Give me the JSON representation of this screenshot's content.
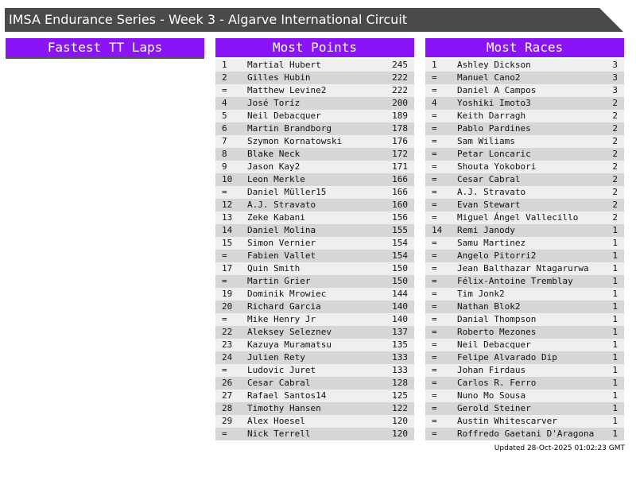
{
  "header": {
    "title": "IMSA Endurance Series - Week 3 - Algarve International Circuit"
  },
  "panels": [
    {
      "title": "Fastest TT Laps",
      "rows": []
    },
    {
      "title": "Most Points",
      "rows": [
        [
          "1",
          "Martial Hubert",
          245
        ],
        [
          "2",
          "Gilles Hubin",
          222
        ],
        [
          "=",
          "Matthew Levine2",
          222
        ],
        [
          "4",
          "José Toríz",
          200
        ],
        [
          "5",
          "Neil Debacquer",
          189
        ],
        [
          "6",
          "Martin Brandborg",
          178
        ],
        [
          "7",
          "Szymon Kornatowski",
          176
        ],
        [
          "8",
          "Blake Neck",
          172
        ],
        [
          "9",
          "Jason Kay2",
          171
        ],
        [
          "10",
          "Leon Merkle",
          166
        ],
        [
          "=",
          "Daniel Müller15",
          166
        ],
        [
          "12",
          "A.J. Stravato",
          160
        ],
        [
          "13",
          "Zeke Kabani",
          156
        ],
        [
          "14",
          "Daniel Molina",
          155
        ],
        [
          "15",
          "Simon Vernier",
          154
        ],
        [
          "=",
          "Fabien Vallet",
          154
        ],
        [
          "17",
          "Quin Smith",
          150
        ],
        [
          "=",
          "Martin Grier",
          150
        ],
        [
          "19",
          "Dominik Mrowiec",
          144
        ],
        [
          "20",
          "Richard Garcia",
          140
        ],
        [
          "=",
          "Mike Henry Jr",
          140
        ],
        [
          "22",
          "Aleksey Seleznev",
          137
        ],
        [
          "23",
          "Kazuya Muramatsu",
          135
        ],
        [
          "24",
          "Julien Rety",
          133
        ],
        [
          "=",
          "Ludovic Juret",
          133
        ],
        [
          "26",
          "Cesar Cabral",
          128
        ],
        [
          "27",
          "Rafael Santos14",
          125
        ],
        [
          "28",
          "Timothy Hansen",
          122
        ],
        [
          "29",
          "Alex Hoesel",
          120
        ],
        [
          "=",
          "Nick Terrell",
          120
        ]
      ]
    },
    {
      "title": "Most Races",
      "rows": [
        [
          "1",
          "Ashley Dickson",
          3
        ],
        [
          "=",
          "Manuel Cano2",
          3
        ],
        [
          "=",
          "Daniel A Campos",
          3
        ],
        [
          "4",
          "Yoshiki Imoto3",
          2
        ],
        [
          "=",
          "Keith Darragh",
          2
        ],
        [
          "=",
          "Pablo Pardines",
          2
        ],
        [
          "=",
          "Sam Wiliams",
          2
        ],
        [
          "=",
          "Petar Loncaric",
          2
        ],
        [
          "=",
          "Shouta Yokobori",
          2
        ],
        [
          "=",
          "Cesar Cabral",
          2
        ],
        [
          "=",
          "A.J. Stravato",
          2
        ],
        [
          "=",
          "Evan Stewart",
          2
        ],
        [
          "=",
          "Miguel Ángel Vallecillo",
          2
        ],
        [
          "14",
          "Remi Janody",
          1
        ],
        [
          "=",
          "Samu Martinez",
          1
        ],
        [
          "=",
          "Angelo Pitorri2",
          1
        ],
        [
          "=",
          "Jean Balthazar Ntagarurwa",
          1
        ],
        [
          "=",
          "Félix-Antoine Tremblay",
          1
        ],
        [
          "=",
          "Tim Jonk2",
          1
        ],
        [
          "=",
          "Nathan Blok2",
          1
        ],
        [
          "=",
          "Danial Thompson",
          1
        ],
        [
          "=",
          "Roberto Mezones",
          1
        ],
        [
          "=",
          "Neil Debacquer",
          1
        ],
        [
          "=",
          "Felipe Alvarado Dip",
          1
        ],
        [
          "=",
          "Johan Firdaus",
          1
        ],
        [
          "=",
          "Carlos R. Ferro",
          1
        ],
        [
          "=",
          "Nuno Mo Sousa",
          1
        ],
        [
          "=",
          "Gerold Steiner",
          1
        ],
        [
          "=",
          "Austin Whitescarver",
          1
        ],
        [
          "=",
          "Roffredo Gaetani D'Aragona",
          1
        ]
      ]
    }
  ],
  "footer": {
    "updated": "Updated 28-Oct-2025 01:02:23 GMT"
  }
}
